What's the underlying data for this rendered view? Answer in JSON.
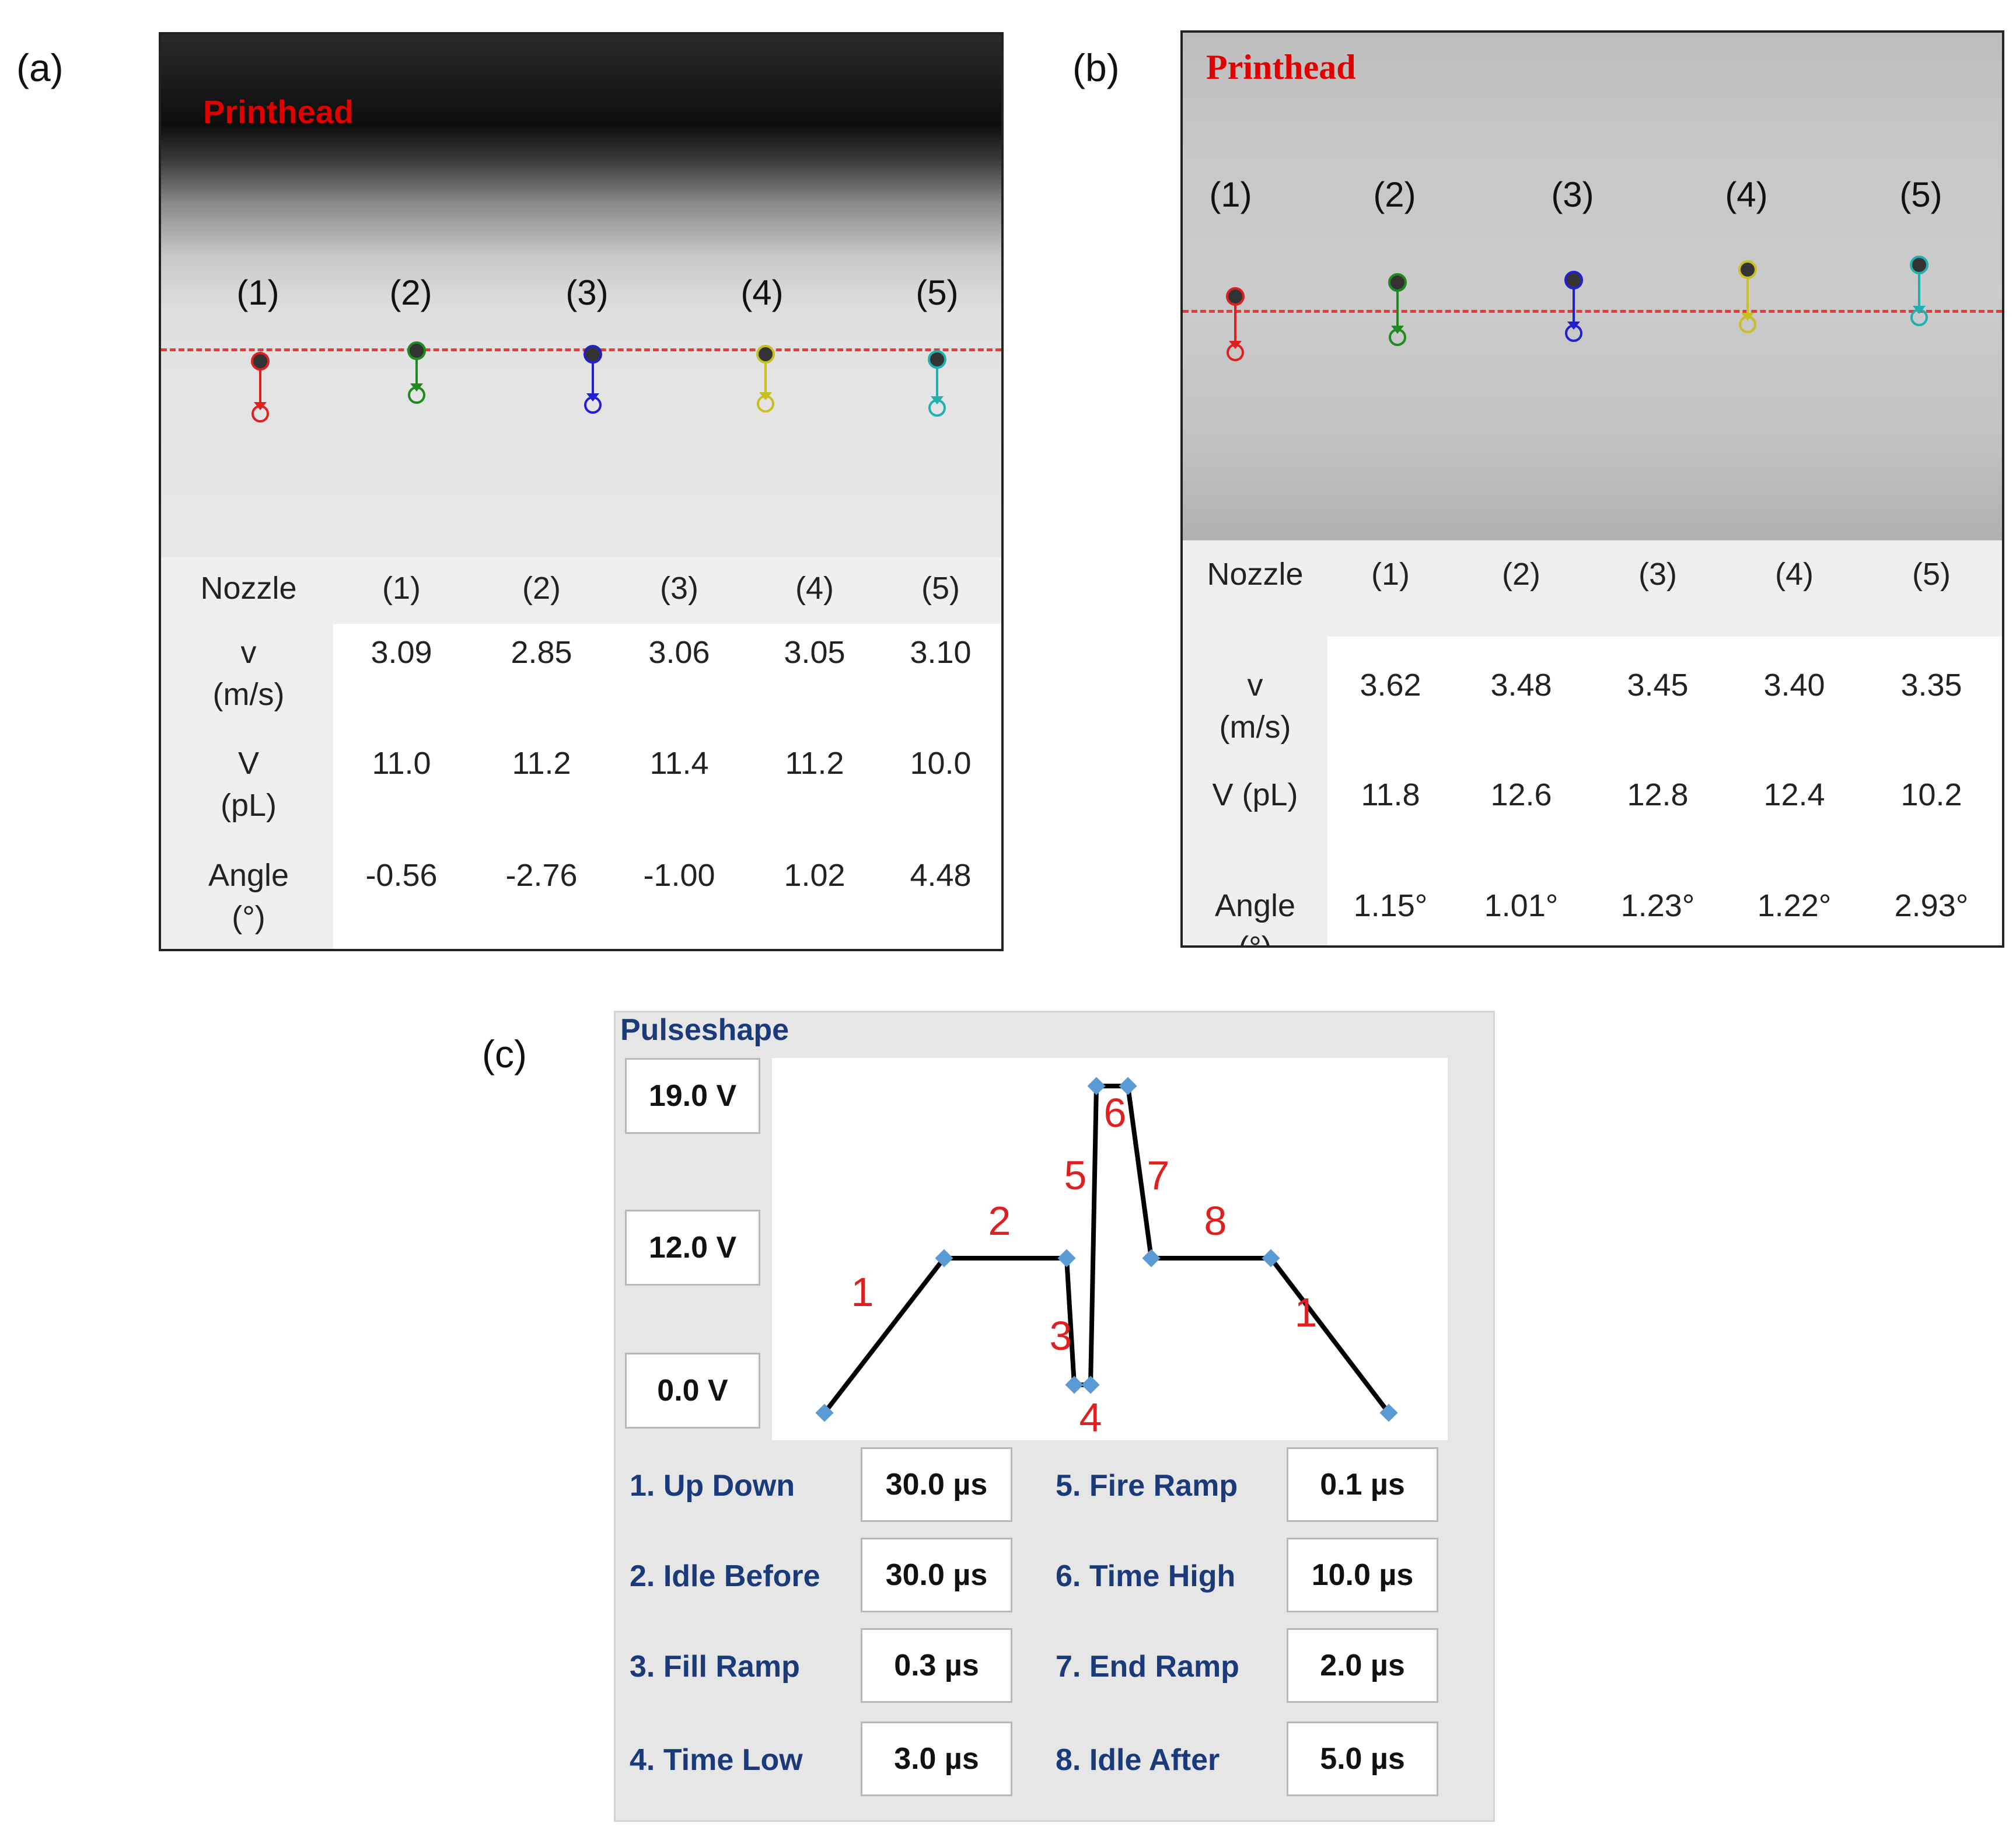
{
  "panel_labels": {
    "a": "(a)",
    "b": "(b)",
    "c": "(c)"
  },
  "panel_a": {
    "printhead_label": "Printhead",
    "nozzle_labels": [
      "(1)",
      "(2)",
      "(3)",
      "(4)",
      "(5)"
    ],
    "drop_colors": [
      "#e02020",
      "#1f8a1f",
      "#2020d0",
      "#c8c020",
      "#20b0b0"
    ],
    "table": {
      "header": [
        "Nozzle",
        "(1)",
        "(2)",
        "(3)",
        "(4)",
        "(5)"
      ],
      "rows": [
        {
          "label": [
            "v",
            "(m/s)"
          ],
          "values": [
            "3.09",
            "2.85",
            "3.06",
            "3.05",
            "3.10"
          ]
        },
        {
          "label": [
            "V",
            "(pL)"
          ],
          "values": [
            "11.0",
            "11.2",
            "11.4",
            "11.2",
            "10.0"
          ]
        },
        {
          "label": [
            "Angle",
            "(°)"
          ],
          "values": [
            "-0.56",
            "-2.76",
            "-1.00",
            "1.02",
            "4.48"
          ]
        }
      ]
    }
  },
  "panel_b": {
    "printhead_label": "Printhead",
    "nozzle_labels": [
      "(1)",
      "(2)",
      "(3)",
      "(4)",
      "(5)"
    ],
    "drop_colors": [
      "#e02020",
      "#1f8a1f",
      "#2020d0",
      "#c8c020",
      "#20b0b0"
    ],
    "table": {
      "header": [
        "Nozzle",
        "(1)",
        "(2)",
        "(3)",
        "(4)",
        "(5)"
      ],
      "rows": [
        {
          "label": [
            "v",
            "(m/s)"
          ],
          "values": [
            "3.62",
            "3.48",
            "3.45",
            "3.40",
            "3.35"
          ]
        },
        {
          "label": [
            "V (pL)"
          ],
          "values": [
            "11.8",
            "12.6",
            "12.8",
            "12.4",
            "10.2"
          ]
        },
        {
          "label": [
            "Angle",
            "(°)"
          ],
          "values": [
            "1.15°",
            "1.01°",
            "1.23°",
            "1.22°",
            "2.93°"
          ]
        }
      ]
    }
  },
  "pulseshape": {
    "title": "Pulseshape",
    "voltages": {
      "high": "19.0 V",
      "mid": "12.0 V",
      "low": "0.0 V"
    },
    "segment_labels": [
      "1",
      "2",
      "3",
      "4",
      "5",
      "6",
      "7",
      "8",
      "1"
    ],
    "params": [
      {
        "label": "1. Up Down",
        "value": "30.0 µs"
      },
      {
        "label": "2. Idle Before",
        "value": "30.0 µs"
      },
      {
        "label": "3. Fill Ramp",
        "value": "0.3 µs"
      },
      {
        "label": "4. Time Low",
        "value": "3.0 µs"
      },
      {
        "label": "5. Fire Ramp",
        "value": "0.1 µs"
      },
      {
        "label": "6. Time High",
        "value": "10.0 µs"
      },
      {
        "label": "7. End Ramp",
        "value": "2.0 µs"
      },
      {
        "label": "8. Idle After",
        "value": "5.0 µs"
      }
    ],
    "colors": {
      "segment_label": "#e02020",
      "point": "#5b9bd5",
      "line": "#000000",
      "param_label": "#1a3a7a"
    }
  }
}
